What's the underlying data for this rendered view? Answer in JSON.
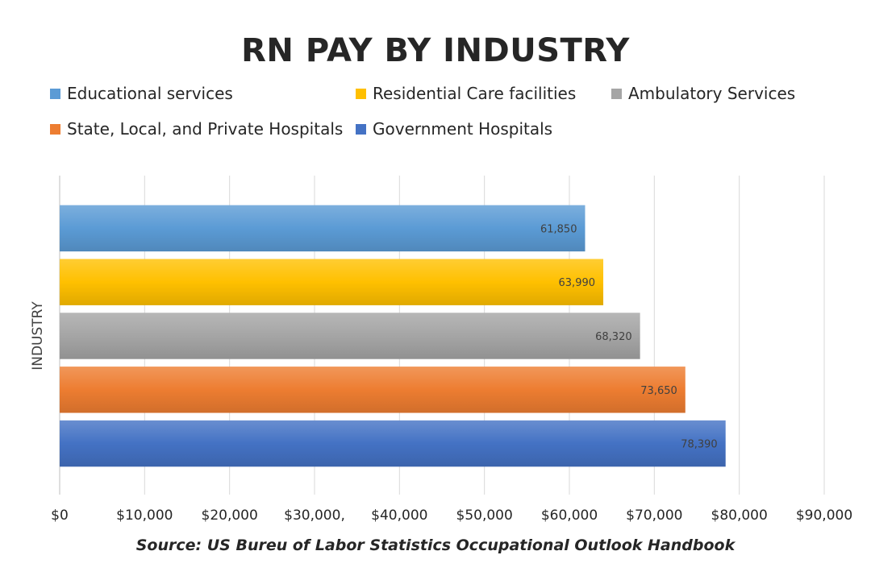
{
  "chart_data": {
    "type": "bar",
    "orientation": "horizontal",
    "title": "RN PAY BY INDUSTRY",
    "ylabel": "INDUSTRY",
    "xlabel": "",
    "source": "Source: US Bureu of Labor Statistics Occupational Outlook Handbook",
    "xlim": [
      0,
      90000
    ],
    "grid": true,
    "legend_position": "top",
    "x_tick_labels": [
      "$0",
      "$10,000",
      "$20,000",
      "$30,000,",
      "$40,000",
      "$50,000",
      "$60,000",
      "$70,000",
      "$80,000",
      "$90,000"
    ],
    "bars": [
      {
        "category": "Educational services",
        "value": 61850,
        "label": "61,850",
        "color": "#5B9BD5"
      },
      {
        "category": "Residential Care facilities",
        "value": 63990,
        "label": "63,990",
        "color": "#FFC000"
      },
      {
        "category": "Ambulatory Services",
        "value": 68320,
        "label": "68,320",
        "color": "#A5A5A5"
      },
      {
        "category": "State, Local, and Private Hospitals",
        "value": 73650,
        "label": "73,650",
        "color": "#ED7D31"
      },
      {
        "category": "Government Hospitals",
        "value": 78390,
        "label": "78,390",
        "color": "#4472C4"
      }
    ]
  }
}
